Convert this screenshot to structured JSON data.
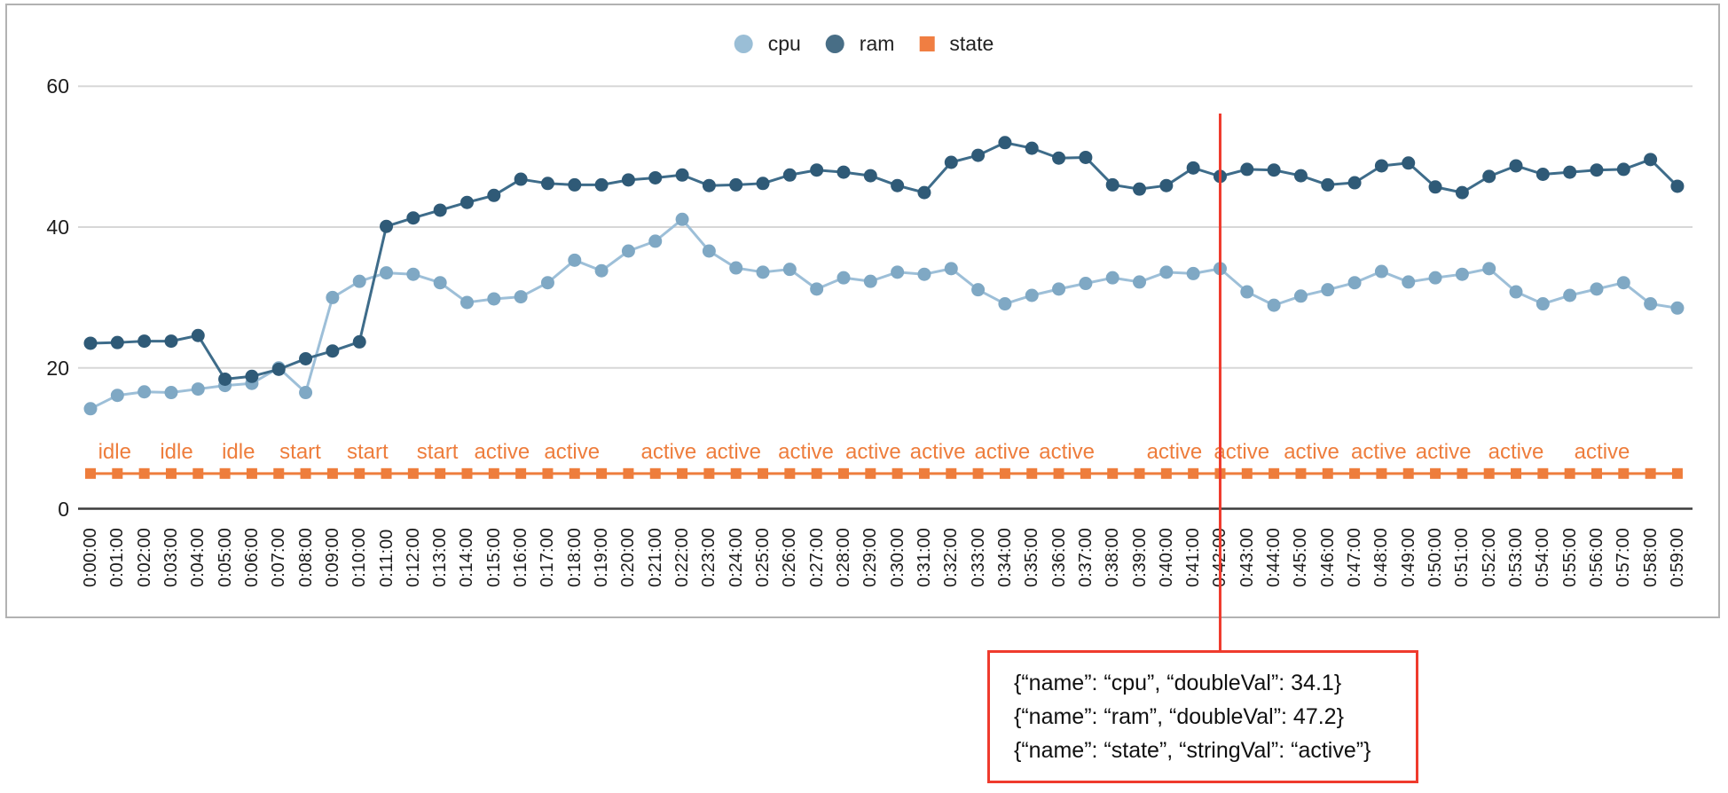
{
  "legend": {
    "items": [
      {
        "label": "cpu",
        "shape": "circle",
        "color": "#9abed6"
      },
      {
        "label": "ram",
        "shape": "circle",
        "color": "#486e86"
      },
      {
        "label": "state",
        "shape": "square",
        "color": "#f07e42"
      }
    ]
  },
  "colors": {
    "cpu_line": "#9dbfd8",
    "cpu_dot": "#7fa8c4",
    "ram_line": "#3e6c8a",
    "ram_dot": "#2f5a77",
    "state": "#ee7d3c",
    "reference_red": "#ef3b2d",
    "gridline": "#d7d7d7",
    "axis": "#3c3c3c",
    "frame_border": "#b2b2b2"
  },
  "chart_data": {
    "type": "line",
    "title": "",
    "xlabel": "",
    "ylabel": "",
    "ylim": [
      0,
      65
    ],
    "y_ticks": [
      0,
      20,
      40,
      60
    ],
    "grid": "horizontal",
    "legend_position": "top-center",
    "x": [
      "0:00:00",
      "0:01:00",
      "0:02:00",
      "0:03:00",
      "0:04:00",
      "0:05:00",
      "0:06:00",
      "0:07:00",
      "0:08:00",
      "0:09:00",
      "0:10:00",
      "0:11:00",
      "0:12:00",
      "0:13:00",
      "0:14:00",
      "0:15:00",
      "0:16:00",
      "0:17:00",
      "0:18:00",
      "0:19:00",
      "0:20:00",
      "0:21:00",
      "0:22:00",
      "0:23:00",
      "0:24:00",
      "0:25:00",
      "0:26:00",
      "0:27:00",
      "0:28:00",
      "0:29:00",
      "0:30:00",
      "0:31:00",
      "0:32:00",
      "0:33:00",
      "0:34:00",
      "0:35:00",
      "0:36:00",
      "0:37:00",
      "0:38:00",
      "0:39:00",
      "0:40:00",
      "0:41:00",
      "0:42:00",
      "0:43:00",
      "0:44:00",
      "0:45:00",
      "0:46:00",
      "0:47:00",
      "0:48:00",
      "0:49:00",
      "0:50:00",
      "0:51:00",
      "0:52:00",
      "0:53:00",
      "0:54:00",
      "0:55:00",
      "0:56:00",
      "0:57:00",
      "0:58:00",
      "0:59:00"
    ],
    "series": [
      {
        "name": "cpu",
        "values": [
          14.2,
          16.1,
          16.6,
          16.5,
          17.0,
          17.5,
          17.8,
          20.0,
          16.5,
          30.0,
          32.3,
          33.5,
          33.3,
          32.1,
          29.3,
          29.8,
          30.1,
          32.1,
          35.3,
          33.8,
          36.6,
          38.0,
          41.1,
          36.6,
          34.2,
          33.6,
          34.0,
          31.2,
          32.8,
          32.3,
          33.6,
          33.3,
          34.1,
          31.1,
          29.1,
          30.3,
          31.2,
          32.0,
          32.8,
          32.2,
          33.6,
          33.4,
          34.1,
          30.8,
          28.9,
          30.2,
          31.1,
          32.1,
          33.7,
          32.2,
          32.8,
          33.3,
          34.1,
          30.8,
          29.1,
          30.3,
          31.2,
          32.1,
          29.1,
          28.5
        ]
      },
      {
        "name": "ram",
        "values": [
          23.5,
          23.6,
          23.8,
          23.8,
          24.6,
          18.4,
          18.8,
          19.8,
          21.3,
          22.4,
          23.7,
          40.1,
          41.3,
          42.4,
          43.5,
          44.5,
          46.8,
          46.2,
          46.0,
          46.0,
          46.7,
          47.0,
          47.4,
          45.9,
          46.0,
          46.2,
          47.4,
          48.1,
          47.8,
          47.3,
          45.9,
          44.9,
          49.2,
          50.2,
          52.0,
          51.2,
          49.8,
          49.9,
          46.0,
          45.4,
          45.9,
          48.4,
          47.2,
          48.2,
          48.1,
          47.3,
          46.0,
          46.3,
          48.7,
          49.1,
          45.7,
          44.9,
          47.2,
          48.7,
          47.5,
          47.8,
          48.1,
          48.2,
          49.6,
          45.8
        ]
      },
      {
        "name": "state",
        "marker": "square",
        "plot_value": 5,
        "values_text": [
          "idle",
          "idle",
          "idle",
          "idle",
          "idle",
          "idle",
          "idle",
          "idle",
          "start",
          "start",
          "start",
          "start",
          "start",
          "start",
          "start",
          "active",
          "active",
          "active",
          "active",
          "active",
          "active",
          "active",
          "active",
          "active",
          "active",
          "active",
          "active",
          "active",
          "active",
          "active",
          "active",
          "active",
          "active",
          "active",
          "active",
          "active",
          "active",
          "active",
          "active",
          "active",
          "active",
          "active",
          "active",
          "active",
          "active",
          "active",
          "active",
          "active",
          "active",
          "active",
          "active",
          "active",
          "active",
          "active",
          "active",
          "active",
          "active",
          "active",
          "active",
          "active"
        ]
      }
    ],
    "annotations": [
      {
        "i": 0.9,
        "text": "idle"
      },
      {
        "i": 3.2,
        "text": "idle"
      },
      {
        "i": 5.5,
        "text": "idle"
      },
      {
        "i": 7.8,
        "text": "start"
      },
      {
        "i": 10.3,
        "text": "start"
      },
      {
        "i": 12.9,
        "text": "start"
      },
      {
        "i": 15.3,
        "text": "active"
      },
      {
        "i": 17.9,
        "text": "active"
      },
      {
        "i": 21.5,
        "text": "active"
      },
      {
        "i": 23.9,
        "text": "active"
      },
      {
        "i": 26.6,
        "text": "active"
      },
      {
        "i": 29.1,
        "text": "active"
      },
      {
        "i": 31.5,
        "text": "active"
      },
      {
        "i": 33.9,
        "text": "active"
      },
      {
        "i": 36.3,
        "text": "active"
      },
      {
        "i": 40.3,
        "text": "active"
      },
      {
        "i": 42.8,
        "text": "active"
      },
      {
        "i": 45.4,
        "text": "active"
      },
      {
        "i": 47.9,
        "text": "active"
      },
      {
        "i": 50.3,
        "text": "active"
      },
      {
        "i": 53.0,
        "text": "active"
      },
      {
        "i": 56.2,
        "text": "active"
      }
    ],
    "reference_line": {
      "x_label": "0:42:00",
      "x_index": 42
    }
  },
  "tooltip": {
    "lines": [
      "{“name”: “cpu”, “doubleVal”: 34.1}",
      "{“name”: “ram”, “doubleVal”: 47.2}",
      "{“name”: “state”, “stringVal”: “active”}"
    ]
  }
}
